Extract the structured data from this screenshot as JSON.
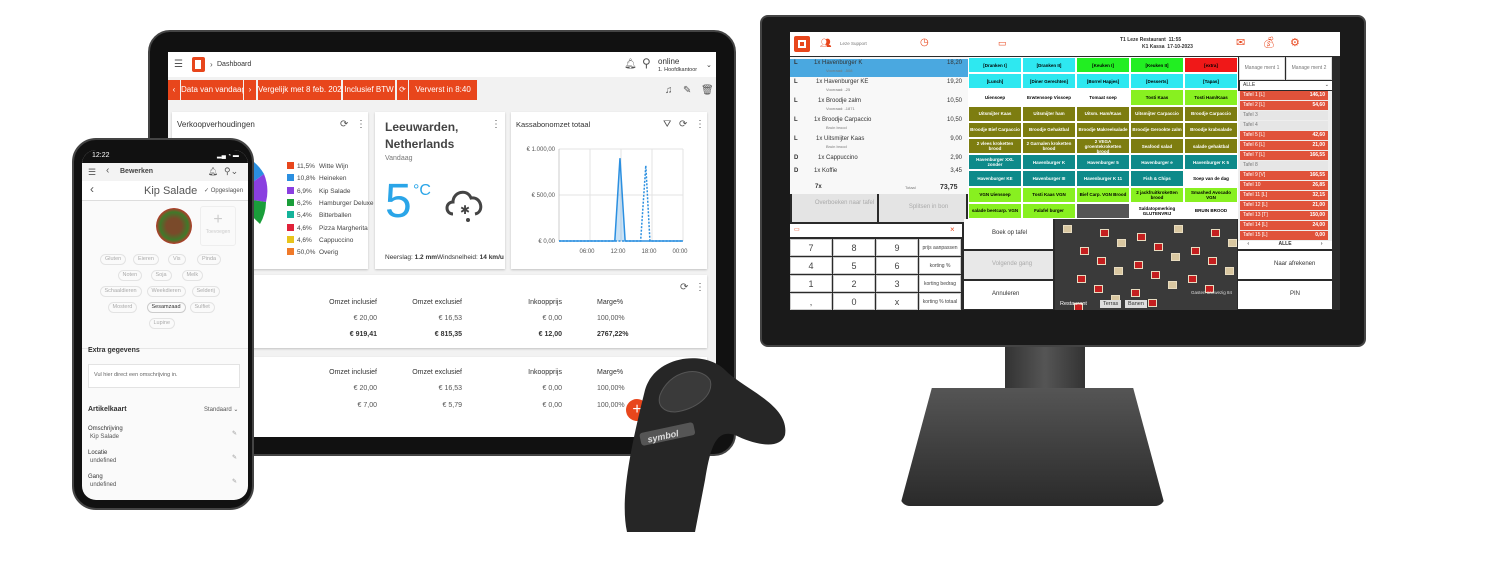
{
  "colors": {
    "accent": "#e8461c",
    "chart_line": "#2b8fe0",
    "temp": "#2aa5e8"
  },
  "tablet": {
    "breadcrumb": "Dashboard",
    "user": {
      "status": "online",
      "location": "1. Hoofdkantoor"
    },
    "toolbar": {
      "date": "Data van vandaag",
      "compare": "Vergelijk met 8 feb. 2022",
      "vat": "Inclusief BTW",
      "refresh": "Ververst in 8:40"
    },
    "sales_ratio": {
      "title": "Verkoopverhoudingen",
      "legend": [
        {
          "pct": "11,5%",
          "label": "Witte Wijn",
          "color": "#e8461c"
        },
        {
          "pct": "10,8%",
          "label": "Heineken",
          "color": "#2b8fe0"
        },
        {
          "pct": "6,9%",
          "label": "Kip Salade",
          "color": "#8a3fe0"
        },
        {
          "pct": "6,2%",
          "label": "Hamburger Deluxe",
          "color": "#1a9e3a"
        },
        {
          "pct": "5,4%",
          "label": "Bitterballen",
          "color": "#14b39a"
        },
        {
          "pct": "4,6%",
          "label": "Pizza Margherita",
          "color": "#e0223a"
        },
        {
          "pct": "4,6%",
          "label": "Cappuccino",
          "color": "#e8c41c"
        },
        {
          "pct": "50,0%",
          "label": "Overig",
          "color": "#f07a2a"
        }
      ]
    },
    "weather": {
      "city": "Leeuwarden,",
      "country": "Netherlands",
      "day": "Vandaag",
      "temp": "5",
      "unit": "°C",
      "icon": "cloud-snow-rain-icon",
      "precip_label": "Neerslag:",
      "precip": "1.2 mm",
      "wind_label": "Windsnelheid:",
      "wind": "14",
      "wind_unit": "km/u"
    },
    "revenue_chart": {
      "title": "Kassabonomzet totaal",
      "y_ticks": [
        "€ 1.000,00",
        "€ 500,00",
        "€ 0,00"
      ],
      "x_ticks": [
        "06:00",
        "12:00",
        "18:00",
        "00:00"
      ],
      "chart_data": {
        "type": "line",
        "ylim": [
          0,
          1000
        ],
        "x_hours": [
          0,
          24
        ],
        "series": [
          {
            "style": "solid",
            "points": [
              [
                0,
                0
              ],
              [
                10.8,
                0
              ],
              [
                11.8,
                900
              ],
              [
                12.8,
                0
              ],
              [
                24,
                0
              ]
            ]
          },
          {
            "style": "dashed",
            "points": [
              [
                0,
                0
              ],
              [
                15.8,
                0
              ],
              [
                16.8,
                820
              ],
              [
                17.6,
                0
              ],
              [
                24,
                0
              ]
            ]
          }
        ]
      }
    },
    "table1": {
      "headers": [
        "Artikel",
        "Omzet inclusief",
        "Omzet exclusief",
        "Inkoopprijs",
        "Marge%"
      ],
      "partial_row": [
        "Amstel Radler",
        "€ 20,00",
        "€ 16,53",
        "€ 0,00",
        "100,00%"
      ],
      "totals": [
        "",
        "€ 919,41",
        "€ 815,35",
        "€ 12,00",
        "2767,22%"
      ]
    },
    "table2": {
      "headers": [
        "Artikel",
        "Omzet inclusief",
        "Omzet exclusief",
        "Inkoopprijs",
        "Marge%"
      ],
      "rows": [
        [
          "Amstel Radler",
          "€ 20,00",
          "€ 16,53",
          "€ 0,00",
          "100,00%"
        ],
        [
          "Corona",
          "€ 7,00",
          "€ 5,79",
          "€ 0,00",
          "100,00%"
        ]
      ]
    },
    "fab": "+"
  },
  "phone": {
    "time": "12:22",
    "header": "Bewerken",
    "title": "Kip Salade",
    "saved": "Opgeslagen",
    "add_photo": "Toevoegen",
    "allergens": [
      "Gluten",
      "Eieren",
      "Vis",
      "Pinda",
      "Noten",
      "Soja",
      "Melk",
      "Schaaldieren",
      "Weekdieren",
      "Selderij",
      "Mosterd",
      "Sesamzaad",
      "Sulfiet",
      "Lupine"
    ],
    "active_allergen": "Sesamzaad",
    "extra_title": "Extra gegevens",
    "extra_placeholder": "Vul hier direct een omschrijving in.",
    "card_title": "Artikelkaart",
    "card_select": "Standaard",
    "fields": [
      {
        "label": "Omschrijving",
        "value": "Kip Salade"
      },
      {
        "label": "Locatie",
        "value": "undefined"
      },
      {
        "label": "Gang",
        "value": "undefined"
      }
    ]
  },
  "scanner": {
    "brand": "symbol"
  },
  "pos": {
    "header": {
      "support": "Leze Support",
      "restaurant": "T1 Leze Restaurant",
      "time": "11:55",
      "register": "K1 Kassa",
      "date": "17-10-2023"
    },
    "order_lines": [
      {
        "type": "L",
        "item": "1x Havenburger  K",
        "note": "Voorraad: -508",
        "price": "18,20",
        "selected": true
      },
      {
        "type": "L",
        "item": "1x Havenburger KE",
        "note": "Voorraad: -25",
        "price": "19,20"
      },
      {
        "type": "L",
        "item": "1x Broodje zalm",
        "note": "Voorraad: -1871",
        "price": "10,50"
      },
      {
        "type": "L",
        "item": "1x Broodje Carpaccio",
        "note": "Bruin brood",
        "price": "10,50"
      },
      {
        "type": "L",
        "item": "1x Uitsmijter Kaas",
        "note": "Bruin brood",
        "price": "9,00"
      },
      {
        "type": "D",
        "item": "1x Cappuccino",
        "note": "",
        "price": "2,90"
      },
      {
        "type": "D",
        "item": "1x Koffie",
        "note": "",
        "price": "3,45"
      }
    ],
    "summary": {
      "count": "7x",
      "total_label": "Totaal",
      "total": "73,75"
    },
    "actions": {
      "transfer": "Overboeken naar tafel",
      "split": "Splitsen in bon",
      "book": "Boek op tafel",
      "next_course": "Volgende gang",
      "cancel": "Annuleren",
      "checkout": "Naar afrekenen",
      "pin": "PIN"
    },
    "numpad": [
      "7",
      "8",
      "9",
      "prijs aanpassen",
      "4",
      "5",
      "6",
      "korting %",
      "1",
      "2",
      "3",
      "korting bedrag",
      ",",
      "0",
      "x",
      "korting % totaal"
    ],
    "manage": [
      "Manage ment 1",
      "Manage ment 2"
    ],
    "grid": [
      [
        [
          "[Dranken I]",
          "cy"
        ],
        [
          "[Dranken II]",
          "cy"
        ],
        [
          "[Keuken I]",
          "gr"
        ],
        [
          "[Keuken II]",
          "gr"
        ],
        [
          "[extra]",
          "rd"
        ]
      ],
      [
        [
          "[Lunch]",
          "cy"
        ],
        [
          "[Diner Gerechten]",
          "cy"
        ],
        [
          "[Borrel Hapjes]",
          "cy"
        ],
        [
          "[Desserts]",
          "cy"
        ],
        [
          "[Tapas]",
          "cy"
        ]
      ],
      [
        [
          "Uiensoep",
          "wh"
        ],
        [
          "Erwtensoep Vissoep",
          "wh"
        ],
        [
          "Tomaat soep",
          "wh"
        ],
        [
          "Tosti Kaas",
          "li"
        ],
        [
          "Tosti Ham/Kaas",
          "li"
        ]
      ],
      [
        [
          "Uitsmijter Kaas",
          "ol"
        ],
        [
          "Uitsmijter ham",
          "ol"
        ],
        [
          "Uitsm. Ham/Kaas",
          "ol"
        ],
        [
          "Uitsmijter Carpaccio",
          "ol"
        ],
        [
          "Broodje Carpaccio",
          "ol"
        ]
      ],
      [
        [
          "Broodje Bief Carpaccio",
          "ol"
        ],
        [
          "Broodje Gehaktbal",
          "ol"
        ],
        [
          "Broodje Makreelsalade",
          "ol"
        ],
        [
          "Broodje Gerookte zalm",
          "ol"
        ],
        [
          "Broodje krabsalade",
          "ol"
        ]
      ],
      [
        [
          "2 vlees kroketten brood",
          "ol"
        ],
        [
          "2 Garnalen kroketten brood",
          "ol"
        ],
        [
          "2 VEGA groentekroketten brood",
          "ol"
        ],
        [
          "Seafood salad",
          "ol"
        ],
        [
          "salade gehaktbal",
          "ol"
        ]
      ],
      [
        [
          "Havenburger XXL zonder",
          "te"
        ],
        [
          "Havenburger  K",
          "te"
        ],
        [
          "Havenburger  5",
          "te"
        ],
        [
          "Havenburger e",
          "te"
        ],
        [
          "Havenburger K 5",
          "te"
        ]
      ],
      [
        [
          "Havenburger KE",
          "te"
        ],
        [
          "Havenburger III",
          "te"
        ],
        [
          "Havenburger  K 11",
          "te"
        ],
        [
          "Fish & Chips",
          "te"
        ],
        [
          "Soep van de dag",
          "wh"
        ]
      ],
      [
        [
          "VGN Uiensoep",
          "li"
        ],
        [
          "Tosti Kaas VGN",
          "li"
        ],
        [
          "Bief Carp. VGN Brood",
          "li"
        ],
        [
          "2 jackfruitkroketten brood",
          "li"
        ],
        [
          "Smashed Avocado VGN",
          "li"
        ]
      ],
      [
        [
          "salade beetcarp. VGN",
          "li"
        ],
        [
          "Falafel burger",
          "li"
        ],
        [
          "",
          "dk"
        ],
        [
          "Saldatopmerking GLUTENVRIJ",
          "wh"
        ],
        [
          "BRUIN BROOD",
          "wh"
        ]
      ]
    ],
    "table_filter": "ALLE",
    "tables": [
      [
        "Tafel 1 [L]",
        "146,10",
        1
      ],
      [
        "Tafel 2 [L]",
        "54,60",
        1
      ],
      [
        "Tafel 3",
        "",
        0
      ],
      [
        "Tafel 4",
        "",
        0
      ],
      [
        "Tafel 5 [L]",
        "42,60",
        1
      ],
      [
        "Tafel 6 [L]",
        "21,00",
        1
      ],
      [
        "Tafel 7 [L]",
        "166,55",
        1
      ],
      [
        "Tafel 8",
        "",
        0
      ],
      [
        "Tafel 9 [V]",
        "166,55",
        1
      ],
      [
        "Tafel 10",
        "26,85",
        1
      ],
      [
        "Tafel 11 [L]",
        "32,15",
        1
      ],
      [
        "Tafel 12 [L]",
        "21,00",
        1
      ],
      [
        "Tafel 13 [T]",
        "150,00",
        1
      ],
      [
        "Tafel 14 [L]",
        "24,00",
        1
      ],
      [
        "Tafel 15 [L]",
        "0,00",
        1
      ]
    ],
    "table_pager": "ALLE",
    "floor_tabs": [
      "Restaurant",
      "Terras",
      "Banen"
    ],
    "guests": "Gasten aanwezig 84"
  }
}
